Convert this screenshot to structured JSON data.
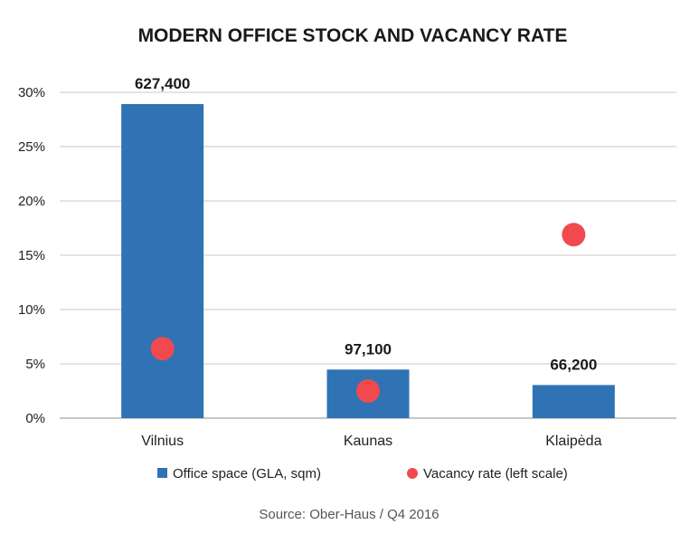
{
  "chart_data": {
    "type": "bar",
    "title": "MODERN OFFICE STOCK AND VACANCY RATE",
    "categories": [
      "Vilnius",
      "Kaunas",
      "Klaipėda"
    ],
    "y_ticks": [
      "0%",
      "5%",
      "10%",
      "15%",
      "20%",
      "25%",
      "30%"
    ],
    "ylim": [
      0,
      30
    ],
    "grid": true,
    "series": [
      {
        "name": "Office space (GLA, sqm)",
        "type": "bar",
        "values": [
          627400,
          97100,
          66200
        ],
        "value_labels": [
          "627,400",
          "97,100",
          "66,200"
        ],
        "color": "#2f73b5"
      },
      {
        "name": "Vacancy rate (left scale)",
        "type": "scatter",
        "values": [
          6.4,
          2.5,
          16.9
        ],
        "color": "#f04a4f"
      }
    ],
    "legend_position": "bottom",
    "source": "Source: Ober-Haus  / Q4 2016"
  }
}
